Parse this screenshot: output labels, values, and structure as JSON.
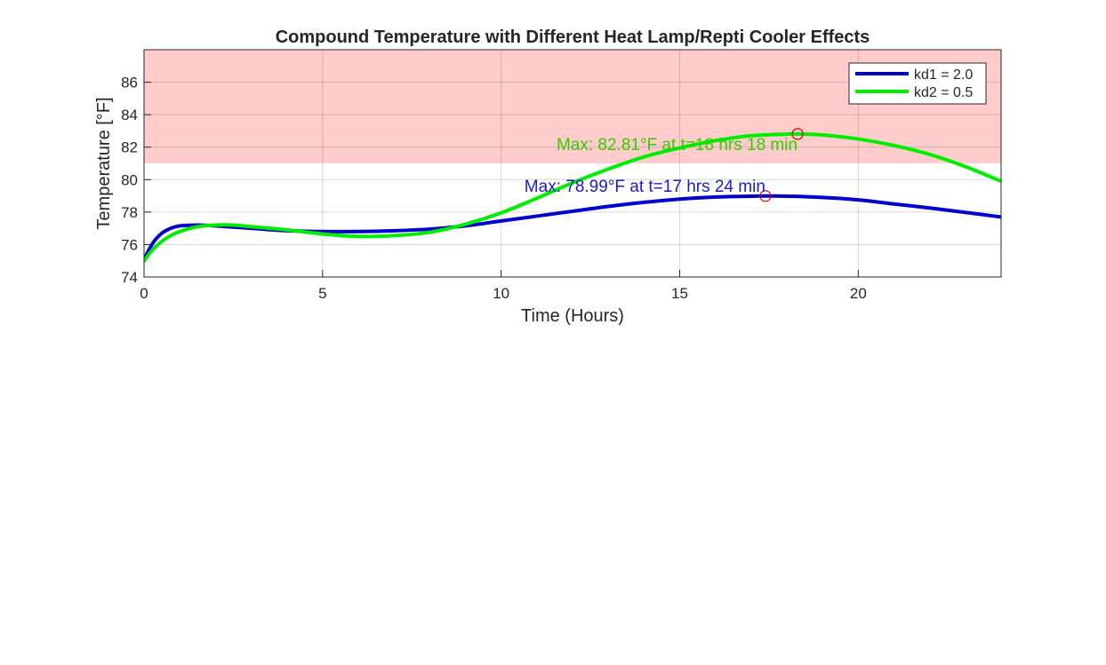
{
  "chart_data": {
    "type": "line",
    "title": "Compound Temperature with Different Heat Lamp/Repti Cooler Effects",
    "xlabel": "Time (Hours)",
    "ylabel": "Temperature [°F]",
    "xlim": [
      0,
      24
    ],
    "ylim": [
      74,
      88
    ],
    "xticks": [
      0,
      5,
      10,
      15,
      20
    ],
    "yticks": [
      74,
      76,
      78,
      80,
      82,
      84,
      86
    ],
    "grid": true,
    "legend_position": "top-right",
    "shaded_region": {
      "y_from": 81,
      "y_to": 88,
      "color": "#ffcccc"
    },
    "series": [
      {
        "name": "kd1 = 2.0",
        "color": "#0000cc",
        "x": [
          0,
          0.25,
          0.5,
          0.75,
          1,
          1.5,
          2,
          3,
          4,
          5,
          6,
          7,
          8,
          9,
          10,
          11,
          12,
          13,
          14,
          15,
          16,
          17,
          17.4,
          18,
          19,
          20,
          21,
          22,
          23,
          24
        ],
        "y": [
          75.1,
          76.1,
          76.7,
          77.0,
          77.15,
          77.2,
          77.15,
          77.0,
          76.85,
          76.8,
          76.8,
          76.85,
          76.95,
          77.15,
          77.45,
          77.75,
          78.05,
          78.35,
          78.6,
          78.8,
          78.93,
          78.98,
          78.99,
          78.98,
          78.9,
          78.75,
          78.5,
          78.25,
          77.98,
          77.7
        ]
      },
      {
        "name": "kd2 = 0.5",
        "color": "#00ee00",
        "x": [
          0,
          0.25,
          0.5,
          0.75,
          1,
          1.5,
          2,
          2.5,
          3,
          4,
          5,
          6,
          7,
          8,
          9,
          10,
          11,
          12,
          13,
          14,
          15,
          16,
          17,
          18,
          18.3,
          19,
          20,
          21,
          22,
          23,
          24
        ],
        "y": [
          75.0,
          75.7,
          76.2,
          76.55,
          76.8,
          77.1,
          77.2,
          77.2,
          77.1,
          76.9,
          76.65,
          76.5,
          76.55,
          76.75,
          77.25,
          77.95,
          78.85,
          79.8,
          80.65,
          81.4,
          81.95,
          82.4,
          82.7,
          82.8,
          82.81,
          82.75,
          82.5,
          82.1,
          81.55,
          80.8,
          79.9
        ]
      }
    ],
    "annotations": [
      {
        "text": "Max: 82.81°F at t=18 hrs 18 min",
        "x": 18.3,
        "y": 82.81,
        "color": "#33cc00",
        "marker_color": "#dd0000"
      },
      {
        "text": "Max: 78.99°F at t=17 hrs 24 min",
        "x": 17.4,
        "y": 78.99,
        "color": "#1a1acc",
        "marker_color": "#dd0000"
      }
    ]
  }
}
